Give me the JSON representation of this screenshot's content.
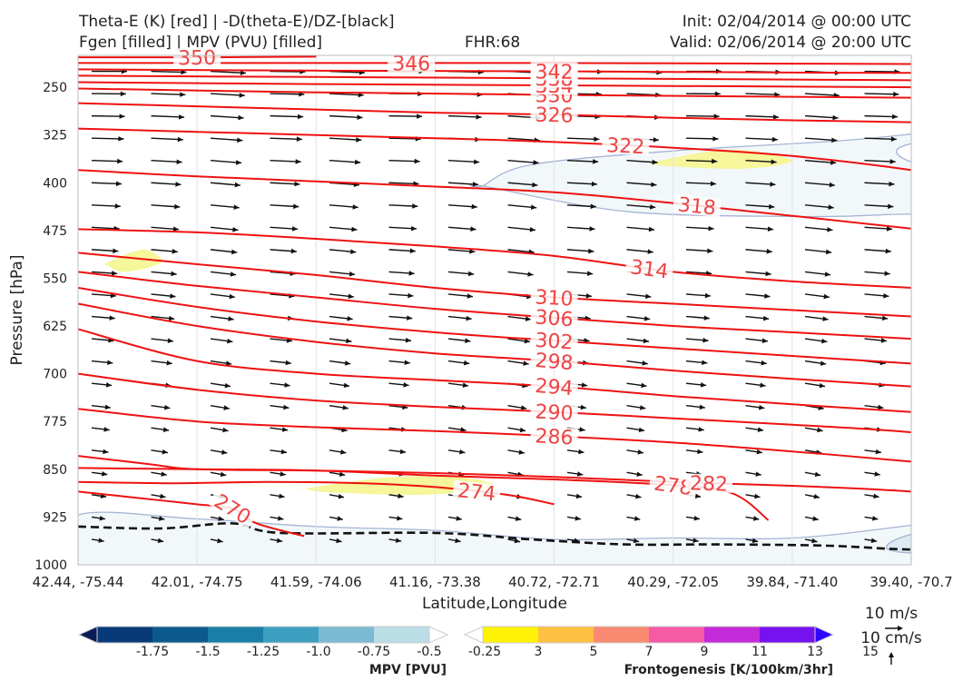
{
  "header": {
    "title_line1": "Theta-E (K) [red] | -D(theta-E)/DZ-[black]",
    "title_line2": "Fgen [filled] | MPV (PVU) [filled]",
    "fhr": "FHR:68",
    "init": "Init: 02/04/2014 @ 00:00 UTC",
    "valid": "Valid: 02/06/2014 @ 20:00 UTC"
  },
  "chart_data": {
    "type": "cross-section",
    "xlabel": "Latitude,Longitude",
    "ylabel": "Pressure [hPa]",
    "ylim": [
      1000,
      200
    ],
    "y_ticks": [
      250,
      325,
      400,
      475,
      550,
      625,
      700,
      775,
      850,
      925,
      1000
    ],
    "x_ticks": [
      "42.44, -75.44",
      "42.01, -74.75",
      "41.59, -74.06",
      "41.16, -73.38",
      "40.72, -72.71",
      "40.29, -72.05",
      "39.84, -71.40",
      "39.40, -70.7"
    ],
    "theta_e_contours": [
      {
        "label": "270",
        "x": [
          0.0,
          0.5,
          1.0,
          1.3,
          1.5,
          1.9
        ],
        "p": [
          885,
          895,
          905,
          912,
          935,
          955
        ]
      },
      {
        "label": "274",
        "x": [
          0.0,
          0.8,
          1.6,
          2.4,
          3.0,
          3.6,
          4.0
        ],
        "p": [
          870,
          872,
          870,
          872,
          878,
          890,
          905
        ]
      },
      {
        "label": "278",
        "x": [
          0.0,
          1.0,
          2.0,
          3.0,
          4.0,
          5.0,
          5.5,
          5.8
        ],
        "p": [
          848,
          850,
          852,
          860,
          866,
          875,
          888,
          930
        ]
      },
      {
        "label": "282",
        "x": [
          0.0,
          0.6,
          1.0,
          2.0,
          3.0,
          4.0,
          5.0,
          6.0,
          7.0,
          7.6,
          7.8
        ],
        "p": [
          829,
          842,
          850,
          852,
          856,
          862,
          870,
          876,
          885,
          898,
          920
        ]
      },
      {
        "label": "286",
        "x": [
          0.0,
          1.0,
          2.0,
          3.0,
          4.0,
          5.0,
          6.0,
          7.0,
          7.6,
          8.4,
          7.7
        ],
        "p": [
          755,
          775,
          784,
          790,
          798,
          808,
          822,
          838,
          850,
          858,
          975
        ]
      },
      {
        "label": "290",
        "x": [
          0,
          1,
          2,
          3,
          4,
          5,
          6,
          7,
          8
        ],
        "p": [
          700,
          725,
          742,
          752,
          760,
          770,
          780,
          792,
          815
        ]
      },
      {
        "label": "294",
        "x": [
          0,
          1,
          2,
          3,
          4,
          5,
          6,
          7,
          8
        ],
        "p": [
          630,
          680,
          700,
          710,
          720,
          735,
          748,
          760,
          772
        ]
      },
      {
        "label": "298",
        "x": [
          0,
          1,
          2,
          3,
          4,
          5,
          6,
          7,
          8
        ],
        "p": [
          590,
          625,
          650,
          668,
          680,
          695,
          708,
          720,
          730
        ]
      },
      {
        "label": "302",
        "x": [
          0,
          1,
          2,
          3,
          4,
          5,
          6,
          7,
          8
        ],
        "p": [
          565,
          595,
          618,
          635,
          648,
          660,
          672,
          684,
          695
        ]
      },
      {
        "label": "306",
        "x": [
          0,
          1,
          2,
          3,
          4,
          5,
          6,
          7,
          8
        ],
        "p": [
          540,
          562,
          580,
          598,
          612,
          625,
          635,
          645,
          655
        ]
      },
      {
        "label": "310",
        "x": [
          0,
          1,
          2,
          3,
          4,
          5,
          6,
          7,
          8
        ],
        "p": [
          510,
          528,
          545,
          565,
          580,
          590,
          600,
          610,
          620
        ]
      },
      {
        "label": "314",
        "x": [
          0,
          1,
          2,
          3,
          4,
          5,
          6,
          7,
          8
        ],
        "p": [
          473,
          478,
          488,
          500,
          515,
          540,
          555,
          565,
          575
        ]
      },
      {
        "label": "318",
        "x": [
          0,
          1,
          2,
          3,
          4,
          5,
          6,
          7,
          8
        ],
        "p": [
          380,
          390,
          398,
          406,
          415,
          432,
          452,
          472,
          492
        ]
      },
      {
        "label": "322",
        "x": [
          0,
          1,
          2,
          3,
          4,
          5,
          6,
          7,
          8
        ],
        "p": [
          315,
          320,
          325,
          330,
          336,
          345,
          358,
          380,
          410
        ]
      },
      {
        "label": "326",
        "x": [
          0,
          1,
          2,
          3,
          4,
          5,
          6,
          7,
          8
        ],
        "p": [
          275,
          280,
          285,
          290,
          293,
          298,
          302,
          305,
          308
        ]
      },
      {
        "label": "330",
        "x": [
          0,
          2,
          4,
          6,
          8
        ],
        "p": [
          252,
          258,
          262,
          265,
          268
        ]
      },
      {
        "label": "334",
        "x": [
          0,
          2,
          4,
          6,
          8
        ],
        "p": [
          242,
          245,
          247,
          249,
          251
        ]
      },
      {
        "label": "338",
        "x": [
          0,
          2,
          4,
          6,
          8
        ],
        "p": [
          232,
          234,
          236,
          238,
          240
        ]
      },
      {
        "label": "342",
        "x": [
          0,
          2,
          4,
          6,
          8
        ],
        "p": [
          222,
          224,
          225,
          227,
          228
        ]
      },
      {
        "label": "346",
        "x": [
          0,
          2,
          4,
          6,
          8
        ],
        "p": [
          212,
          212,
          212,
          213,
          214
        ]
      },
      {
        "label": "350",
        "x": [
          0,
          1,
          2
        ],
        "p": [
          203,
          203,
          202
        ]
      }
    ],
    "dthetae_dz_zero_line": {
      "x": [
        0.0,
        0.7,
        1.3,
        1.7,
        3.0,
        3.8,
        4.6,
        5.4,
        6.3,
        7.0,
        7.6,
        8.0
      ],
      "p": [
        940,
        943,
        935,
        950,
        950,
        960,
        968,
        968,
        970,
        976,
        972,
        947
      ]
    },
    "mpv_regions": [
      {
        "level": -0.25,
        "x": [
          3.4,
          3.8,
          5.0,
          6.4,
          7.2,
          7.5,
          6.9,
          7.05,
          7.6,
          7.5,
          6.8,
          6.0,
          4.6,
          3.4
        ],
        "p": [
          405,
          372,
          350,
          334,
          320,
          318,
          345,
          370,
          380,
          440,
          450,
          453,
          445,
          405
        ]
      },
      {
        "level": -0.25,
        "x": [
          0.0,
          1.0,
          2.0,
          3.0,
          4.0,
          5.0,
          6.0,
          7.0,
          8.0,
          8.0,
          0.0
        ],
        "p": [
          922,
          928,
          940,
          946,
          960,
          958,
          958,
          938,
          912,
          1000,
          1000
        ]
      },
      {
        "level": -0.5,
        "x": [
          6.9,
          7.5,
          8.0,
          8.0,
          6.9
        ],
        "p": [
          958,
          935,
          932,
          980,
          980
        ]
      }
    ],
    "fgen_regions": [
      {
        "level": 3,
        "x": [
          4.9,
          5.5,
          6.0,
          5.6,
          4.9
        ],
        "p": [
          365,
          348,
          365,
          378,
          373
        ]
      },
      {
        "level": 3,
        "x": [
          0.25,
          0.55,
          0.7,
          0.4,
          0.25
        ],
        "p": [
          525,
          505,
          525,
          540,
          530
        ]
      },
      {
        "level": 3,
        "x": [
          1.9,
          2.6,
          3.2,
          3.5,
          2.9,
          2.1,
          1.9
        ],
        "p": [
          880,
          863,
          862,
          878,
          890,
          886,
          880
        ]
      }
    ],
    "wind_scale": {
      "label_u": "10 m/s",
      "label_w": "10 cm/s"
    },
    "colorbars": [
      {
        "name": "MPV [PVU]",
        "colors": [
          "#081d58",
          "#083a7a",
          "#0a5a8e",
          "#1a7fa6",
          "#3d9fbf",
          "#7bbad1",
          "#bbdde6",
          "#ffffff"
        ],
        "ticks": [
          "-1.75",
          "-1.5",
          "-1.25",
          "-1.0",
          "-0.75",
          "-0.5",
          "-0.25"
        ]
      },
      {
        "name": "Frontogenesis [K/100km/3hr]",
        "colors": [
          "#ffffff",
          "#fff207",
          "#fec040",
          "#fb8a72",
          "#f65aa4",
          "#c32ad8",
          "#7611ef",
          "#2d07fb"
        ],
        "ticks": [
          "3",
          "5",
          "7",
          "9",
          "11",
          "13",
          "15"
        ]
      }
    ]
  }
}
